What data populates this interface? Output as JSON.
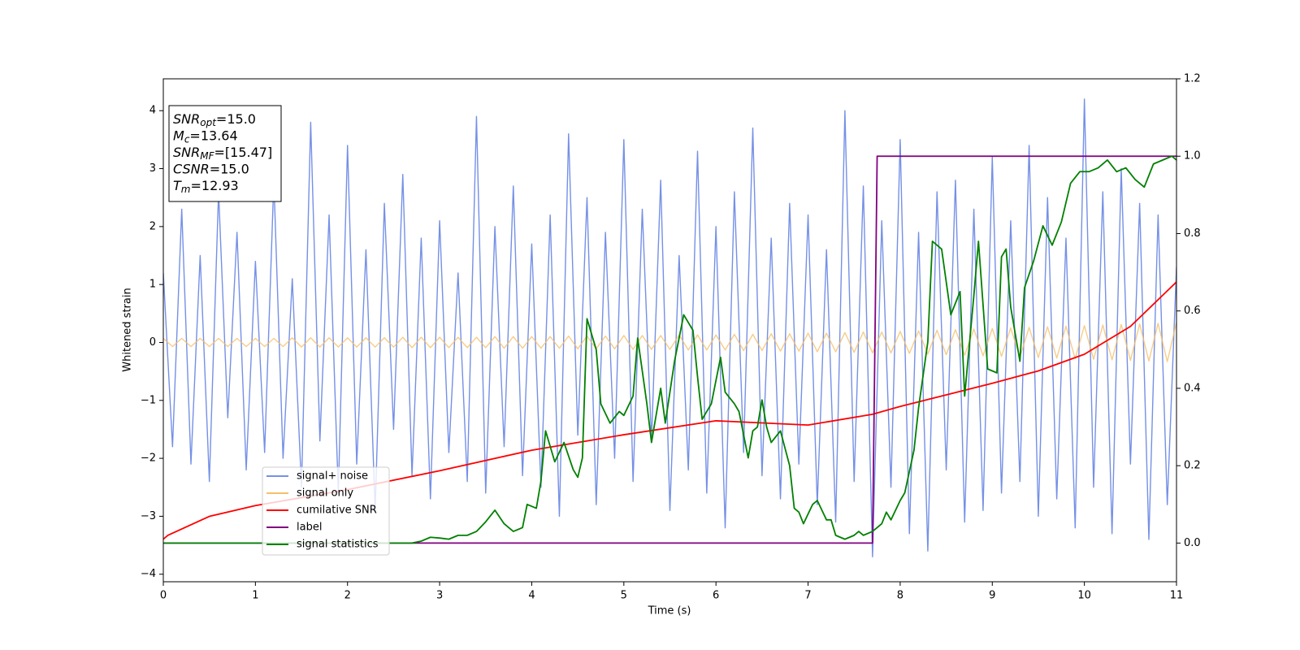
{
  "chart_data": {
    "type": "line",
    "xlabel": "Time (s)",
    "ylabel": "Whitened strain",
    "xlim": [
      0,
      11
    ],
    "ylim": [
      -4.13,
      4.55
    ],
    "y2lim": [
      -0.1,
      1.2
    ],
    "xticks": [
      0,
      1,
      2,
      3,
      4,
      5,
      6,
      7,
      8,
      9,
      10,
      11
    ],
    "yticks": [
      {
        "value": -4,
        "label": "−4"
      },
      {
        "value": -3,
        "label": "−3"
      },
      {
        "value": -2,
        "label": "−2"
      },
      {
        "value": -1,
        "label": "−1"
      },
      0,
      1,
      2,
      3,
      4
    ],
    "y2ticks": [
      {
        "value": 0,
        "label": "0.0"
      },
      {
        "value": 0.2,
        "label": "0.2"
      },
      {
        "value": 0.4,
        "label": "0.4"
      },
      {
        "value": 0.6,
        "label": "0.6"
      },
      {
        "value": 0.8,
        "label": "0.8"
      },
      {
        "value": 1,
        "label": "1.0"
      },
      {
        "value": 1.2,
        "label": "1.2"
      }
    ],
    "grid": false,
    "legend": "lower left",
    "annotations": [
      {
        "text": "SNR",
        "sub": "opt",
        "rest": "=15.0"
      },
      {
        "text": "M",
        "sub": "c",
        "rest": "=13.64"
      },
      {
        "text": "SNR",
        "sub": "MF",
        "rest": "=[15.47]"
      },
      {
        "text": "CSNR",
        "rest": "=15.0"
      },
      {
        "text": "T",
        "sub": "m",
        "rest": "=12.93"
      }
    ],
    "x": [
      0,
      0.1,
      0.2,
      0.3,
      0.4,
      0.5,
      0.6,
      0.7,
      0.8,
      0.9,
      1,
      1.1,
      1.2,
      1.3,
      1.4,
      1.5,
      1.6,
      1.7,
      1.8,
      1.9,
      2,
      2.1,
      2.2,
      2.3,
      2.4,
      2.5,
      2.6,
      2.7,
      2.8,
      2.9,
      3,
      3.1,
      3.2,
      3.3,
      3.4,
      3.5,
      3.6,
      3.7,
      3.8,
      3.9,
      4,
      4.1,
      4.2,
      4.3,
      4.4,
      4.5,
      4.6,
      4.7,
      4.8,
      4.9,
      5,
      5.1,
      5.2,
      5.3,
      5.4,
      5.5,
      5.6,
      5.7,
      5.8,
      5.9,
      6,
      6.1,
      6.2,
      6.3,
      6.4,
      6.5,
      6.6,
      6.7,
      6.8,
      6.9,
      7,
      7.1,
      7.2,
      7.3,
      7.4,
      7.5,
      7.6,
      7.7,
      7.8,
      7.9,
      8,
      8.1,
      8.2,
      8.3,
      8.4,
      8.5,
      8.6,
      8.7,
      8.8,
      8.9,
      9,
      9.1,
      9.2,
      9.3,
      9.4,
      9.5,
      9.6,
      9.7,
      9.8,
      9.9,
      10,
      10.1,
      10.2,
      10.3,
      10.4,
      10.5,
      10.6,
      10.7,
      10.8,
      10.9,
      11
    ],
    "series": [
      {
        "name": "signal+ noise",
        "color": "#7590e6",
        "axis": "y",
        "values": [
          1.2,
          -1.8,
          2.3,
          -2.1,
          1.5,
          -2.4,
          2.6,
          -1.3,
          1.9,
          -2.2,
          1.4,
          -1.9,
          2.8,
          -2.0,
          1.1,
          -2.5,
          3.8,
          -1.7,
          2.2,
          -2.6,
          3.4,
          -2.1,
          1.6,
          -2.9,
          2.4,
          -1.5,
          2.9,
          -2.3,
          1.8,
          -2.7,
          2.1,
          -1.9,
          1.2,
          -2.4,
          3.9,
          -2.6,
          2.0,
          -1.8,
          2.7,
          -2.3,
          1.7,
          -2.5,
          2.2,
          -3.0,
          3.6,
          -1.6,
          2.5,
          -2.8,
          1.9,
          -2.0,
          3.5,
          -2.4,
          2.3,
          -1.7,
          2.8,
          -2.9,
          1.5,
          -2.2,
          3.3,
          -2.6,
          2.0,
          -3.2,
          2.6,
          -1.9,
          3.7,
          -2.3,
          1.8,
          -2.7,
          2.4,
          -2.1,
          2.2,
          -2.8,
          1.6,
          -3.1,
          4.0,
          -2.4,
          2.7,
          -3.7,
          2.1,
          -2.5,
          3.5,
          -3.3,
          1.9,
          -3.6,
          2.6,
          -2.2,
          2.8,
          -3.1,
          2.3,
          -2.9,
          3.2,
          -2.6,
          2.1,
          -2.4,
          3.4,
          -3.0,
          2.5,
          -2.7,
          1.8,
          -3.2,
          4.2,
          -2.5,
          2.6,
          -3.3,
          3.0,
          -2.1,
          2.4,
          -3.4,
          2.2,
          -2.8,
          1.3
        ]
      },
      {
        "name": "signal only",
        "color": "#f5c06a",
        "axis": "y",
        "values": [
          0.07,
          -0.07,
          0.07,
          -0.07,
          0.07,
          -0.07,
          0.07,
          -0.07,
          0.07,
          -0.07,
          0.07,
          -0.07,
          0.07,
          -0.07,
          0.08,
          -0.08,
          0.08,
          -0.08,
          0.08,
          -0.08,
          0.08,
          -0.08,
          0.08,
          -0.08,
          0.08,
          -0.08,
          0.09,
          -0.09,
          0.09,
          -0.09,
          0.09,
          -0.09,
          0.09,
          -0.09,
          0.09,
          -0.09,
          0.1,
          -0.1,
          0.1,
          -0.1,
          0.1,
          -0.1,
          0.1,
          -0.1,
          0.11,
          -0.11,
          0.11,
          -0.11,
          0.11,
          -0.11,
          0.12,
          -0.12,
          0.12,
          -0.12,
          0.12,
          -0.12,
          0.13,
          -0.13,
          0.13,
          -0.13,
          0.13,
          -0.13,
          0.14,
          -0.14,
          0.14,
          -0.14,
          0.15,
          -0.15,
          0.15,
          -0.15,
          0.16,
          -0.16,
          0.16,
          -0.16,
          0.17,
          -0.17,
          0.18,
          -0.18,
          0.18,
          -0.18,
          0.19,
          -0.19,
          0.2,
          -0.2,
          0.21,
          -0.21,
          0.22,
          -0.22,
          0.23,
          -0.23,
          0.24,
          -0.24,
          0.25,
          -0.25,
          0.26,
          -0.26,
          0.27,
          -0.27,
          0.28,
          -0.28,
          0.29,
          -0.29,
          0.3,
          -0.3,
          0.31,
          -0.31,
          0.32,
          -0.32,
          0.33,
          -0.33,
          0.35
        ]
      },
      {
        "name": "cumilative SNR",
        "color": "#ff0000",
        "axis": "y2",
        "x": [
          0,
          0.05,
          0.5,
          1,
          2,
          3,
          4,
          5,
          6,
          7,
          7.7,
          8,
          9,
          9.5,
          10,
          10.5,
          11
        ],
        "values": [
          0.01,
          0.02,
          0.069,
          0.097,
          0.138,
          0.187,
          0.24,
          0.28,
          0.316,
          0.305,
          0.333,
          0.353,
          0.413,
          0.445,
          0.488,
          0.56,
          0.675
        ]
      },
      {
        "name": "label",
        "color": "#800080",
        "axis": "y2",
        "x": [
          0,
          7.7,
          7.75,
          11
        ],
        "values": [
          0,
          0,
          1,
          1
        ]
      },
      {
        "name": "signal statistics",
        "color": "#008000",
        "axis": "y2",
        "x": [
          0,
          2.7,
          2.8,
          2.9,
          3.0,
          3.1,
          3.2,
          3.3,
          3.4,
          3.5,
          3.6,
          3.7,
          3.8,
          3.9,
          3.95,
          4.05,
          4.1,
          4.15,
          4.25,
          4.35,
          4.45,
          4.5,
          4.55,
          4.6,
          4.7,
          4.75,
          4.85,
          4.95,
          5.0,
          5.1,
          5.15,
          5.25,
          5.3,
          5.4,
          5.45,
          5.55,
          5.65,
          5.75,
          5.8,
          5.85,
          5.95,
          6.05,
          6.1,
          6.2,
          6.25,
          6.3,
          6.35,
          6.4,
          6.45,
          6.5,
          6.55,
          6.6,
          6.7,
          6.8,
          6.85,
          6.9,
          6.95,
          7.05,
          7.1,
          7.2,
          7.25,
          7.3,
          7.4,
          7.5,
          7.55,
          7.6,
          7.7,
          7.8,
          7.85,
          7.9,
          8.0,
          8.05,
          8.15,
          8.2,
          8.3,
          8.35,
          8.45,
          8.55,
          8.65,
          8.7,
          8.8,
          8.85,
          8.95,
          9.05,
          9.1,
          9.15,
          9.2,
          9.3,
          9.35,
          9.45,
          9.55,
          9.65,
          9.75,
          9.85,
          9.95,
          10.05,
          10.15,
          10.25,
          10.35,
          10.45,
          10.55,
          10.65,
          10.75,
          10.85,
          10.95,
          11
        ],
        "values": [
          0,
          0,
          0.005,
          0.015,
          0.013,
          0.01,
          0.02,
          0.02,
          0.03,
          0.055,
          0.085,
          0.05,
          0.03,
          0.04,
          0.1,
          0.09,
          0.16,
          0.29,
          0.21,
          0.26,
          0.19,
          0.17,
          0.22,
          0.58,
          0.5,
          0.36,
          0.31,
          0.34,
          0.33,
          0.38,
          0.53,
          0.36,
          0.26,
          0.4,
          0.31,
          0.47,
          0.59,
          0.55,
          0.43,
          0.32,
          0.36,
          0.48,
          0.39,
          0.36,
          0.34,
          0.28,
          0.22,
          0.29,
          0.3,
          0.37,
          0.3,
          0.26,
          0.29,
          0.2,
          0.09,
          0.08,
          0.05,
          0.1,
          0.11,
          0.06,
          0.06,
          0.02,
          0.01,
          0.02,
          0.03,
          0.02,
          0.03,
          0.05,
          0.08,
          0.06,
          0.11,
          0.13,
          0.24,
          0.35,
          0.52,
          0.78,
          0.76,
          0.59,
          0.65,
          0.38,
          0.64,
          0.78,
          0.45,
          0.44,
          0.74,
          0.76,
          0.61,
          0.47,
          0.66,
          0.73,
          0.82,
          0.77,
          0.83,
          0.93,
          0.96,
          0.96,
          0.97,
          0.99,
          0.96,
          0.97,
          0.94,
          0.92,
          0.98,
          0.99,
          1.0,
          0.99
        ]
      }
    ]
  }
}
